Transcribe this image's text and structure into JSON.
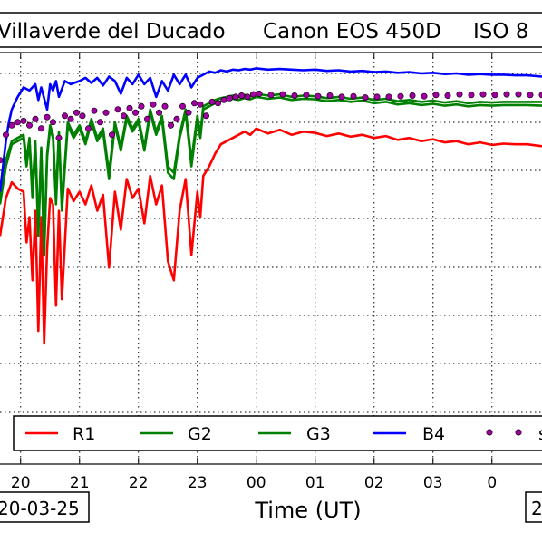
{
  "header": {
    "location": "Villaverde del Ducado",
    "camera": "Canon EOS 450D",
    "iso": "ISO 8"
  },
  "footer": {
    "start_date": "20-03-25",
    "end_date": "2"
  },
  "chart_data": {
    "type": "line",
    "title": "",
    "xlabel": "Time (UT)",
    "ylabel": "",
    "x_tick_labels": [
      "20",
      "21",
      "22",
      "23",
      "00",
      "01",
      "02",
      "03",
      "0"
    ],
    "x_range_hours": [
      19.65,
      28.85
    ],
    "y_range": [
      0,
      10.5
    ],
    "grid": true,
    "legend_position": "bottom",
    "colors": {
      "R1": "#ff0000",
      "G2": "#008000",
      "G3": "#008000",
      "B4": "#0000ff",
      "marker": "#a000a0"
    },
    "series": [
      {
        "name": "R1",
        "style": "line",
        "x": [
          19.65,
          19.75,
          19.85,
          19.95,
          20.05,
          20.1,
          20.15,
          20.2,
          20.25,
          20.3,
          20.35,
          20.4,
          20.45,
          20.5,
          20.55,
          20.6,
          20.65,
          20.7,
          20.8,
          20.9,
          21.0,
          21.1,
          21.2,
          21.3,
          21.4,
          21.5,
          21.6,
          21.7,
          21.8,
          21.9,
          22.0,
          22.1,
          22.2,
          22.3,
          22.4,
          22.5,
          22.6,
          22.7,
          22.8,
          22.9,
          23.0,
          23.05,
          23.1,
          23.2,
          23.3,
          23.4,
          23.5,
          23.6,
          23.7,
          23.8,
          23.9,
          24.0,
          24.2,
          24.4,
          24.6,
          24.8,
          25.0,
          25.2,
          25.4,
          25.6,
          25.8,
          26.0,
          26.2,
          26.4,
          26.6,
          26.8,
          27.0,
          27.2,
          27.4,
          27.6,
          27.8,
          28.0,
          28.2,
          28.4,
          28.6,
          28.85
        ],
        "y": [
          8.0,
          8.6,
          8.85,
          8.75,
          8.7,
          7.9,
          8.3,
          7.3,
          8.4,
          6.5,
          8.3,
          6.3,
          7.8,
          8.6,
          8.5,
          6.9,
          8.4,
          7.0,
          8.75,
          8.55,
          8.7,
          8.5,
          8.8,
          8.4,
          8.65,
          7.5,
          8.7,
          8.1,
          8.9,
          8.6,
          8.75,
          8.2,
          8.95,
          8.5,
          8.8,
          7.6,
          7.3,
          8.4,
          8.9,
          7.7,
          8.7,
          8.3,
          8.95,
          9.1,
          9.3,
          9.45,
          9.5,
          9.55,
          9.6,
          9.65,
          9.6,
          9.7,
          9.62,
          9.68,
          9.6,
          9.65,
          9.63,
          9.58,
          9.62,
          9.57,
          9.6,
          9.55,
          9.58,
          9.52,
          9.55,
          9.5,
          9.53,
          9.48,
          9.5,
          9.45,
          9.48,
          9.44,
          9.46,
          9.45,
          9.45,
          9.42
        ]
      },
      {
        "name": "G2",
        "style": "line",
        "x": [
          19.65,
          19.75,
          19.85,
          19.95,
          20.05,
          20.1,
          20.15,
          20.2,
          20.25,
          20.3,
          20.35,
          20.4,
          20.45,
          20.5,
          20.55,
          20.6,
          20.65,
          20.7,
          20.8,
          20.9,
          21.0,
          21.1,
          21.2,
          21.3,
          21.4,
          21.5,
          21.6,
          21.7,
          21.8,
          21.9,
          22.0,
          22.1,
          22.2,
          22.3,
          22.4,
          22.5,
          22.6,
          22.7,
          22.8,
          22.9,
          23.0,
          23.05,
          23.1,
          23.2,
          23.3,
          23.4,
          23.5,
          23.6,
          23.7,
          23.8,
          23.9,
          24.0,
          24.2,
          24.4,
          24.6,
          24.8,
          25.0,
          25.2,
          25.4,
          25.6,
          25.8,
          26.0,
          26.2,
          26.4,
          26.6,
          26.8,
          27.0,
          27.2,
          27.4,
          27.6,
          27.8,
          28.0,
          28.2,
          28.4,
          28.6,
          28.85
        ],
        "y": [
          8.6,
          9.2,
          9.5,
          9.55,
          9.6,
          9.2,
          9.55,
          8.7,
          9.5,
          8.1,
          9.4,
          7.8,
          9.3,
          9.75,
          9.6,
          8.6,
          9.65,
          8.5,
          9.8,
          9.6,
          9.75,
          9.5,
          9.85,
          9.55,
          9.7,
          9.0,
          9.8,
          9.4,
          9.9,
          9.7,
          9.85,
          9.4,
          10.0,
          9.65,
          9.9,
          9.1,
          9.0,
          9.6,
          10.0,
          9.2,
          9.9,
          9.6,
          10.05,
          10.1,
          10.15,
          10.18,
          10.2,
          10.22,
          10.2,
          10.23,
          10.21,
          10.25,
          10.22,
          10.24,
          10.2,
          10.22,
          10.21,
          10.18,
          10.2,
          10.17,
          10.19,
          10.15,
          10.17,
          10.13,
          10.15,
          10.12,
          10.14,
          10.11,
          10.13,
          10.1,
          10.12,
          10.11,
          10.12,
          10.12,
          10.12,
          10.12
        ]
      },
      {
        "name": "G3",
        "style": "line",
        "x": [
          19.65,
          19.75,
          19.85,
          19.95,
          20.05,
          20.1,
          20.15,
          20.2,
          20.25,
          20.3,
          20.35,
          20.4,
          20.45,
          20.5,
          20.55,
          20.6,
          20.65,
          20.7,
          20.8,
          20.9,
          21.0,
          21.1,
          21.2,
          21.3,
          21.4,
          21.5,
          21.6,
          21.7,
          21.8,
          21.9,
          22.0,
          22.1,
          22.2,
          22.3,
          22.4,
          22.5,
          22.6,
          22.7,
          22.8,
          22.9,
          23.0,
          23.05,
          23.1,
          23.2,
          23.3,
          23.4,
          23.5,
          23.6,
          23.7,
          23.8,
          23.9,
          24.0,
          24.2,
          24.4,
          24.6,
          24.8,
          25.0,
          25.2,
          25.4,
          25.6,
          25.8,
          26.0,
          26.2,
          26.4,
          26.6,
          26.8,
          27.0,
          27.2,
          27.4,
          27.6,
          27.8,
          28.0,
          28.2,
          28.4,
          28.6,
          28.85
        ],
        "y": [
          8.5,
          9.1,
          9.45,
          9.5,
          9.55,
          9.1,
          9.5,
          8.6,
          9.45,
          8.0,
          9.35,
          7.7,
          9.25,
          9.7,
          9.55,
          8.5,
          9.6,
          8.4,
          9.75,
          9.55,
          9.7,
          9.45,
          9.8,
          9.5,
          9.65,
          8.9,
          9.75,
          9.35,
          9.85,
          9.65,
          9.8,
          9.35,
          9.95,
          9.6,
          9.85,
          9.0,
          8.9,
          9.55,
          9.95,
          9.1,
          9.85,
          9.55,
          10.0,
          10.05,
          10.1,
          10.13,
          10.15,
          10.17,
          10.15,
          10.18,
          10.16,
          10.2,
          10.17,
          10.19,
          10.15,
          10.17,
          10.16,
          10.13,
          10.15,
          10.12,
          10.14,
          10.1,
          10.12,
          10.08,
          10.1,
          10.07,
          10.09,
          10.06,
          10.08,
          10.05,
          10.07,
          10.06,
          10.07,
          10.07,
          10.07,
          10.06
        ]
      },
      {
        "name": "B4",
        "style": "line",
        "x": [
          19.65,
          19.7,
          19.75,
          19.8,
          19.85,
          19.9,
          19.95,
          20.05,
          20.15,
          20.25,
          20.3,
          20.35,
          20.45,
          20.5,
          20.55,
          20.6,
          20.65,
          20.75,
          20.85,
          21.0,
          21.1,
          21.2,
          21.3,
          21.4,
          21.5,
          21.6,
          21.7,
          21.8,
          21.9,
          22.0,
          22.1,
          22.2,
          22.3,
          22.4,
          22.5,
          22.6,
          22.7,
          22.8,
          22.9,
          23.0,
          23.1,
          23.2,
          23.3,
          23.4,
          23.5,
          23.6,
          23.7,
          23.8,
          23.9,
          24.0,
          24.2,
          24.4,
          24.6,
          24.8,
          25.0,
          25.2,
          25.4,
          25.6,
          25.8,
          26.0,
          26.2,
          26.4,
          26.6,
          26.8,
          27.0,
          27.2,
          27.4,
          27.6,
          27.8,
          28.0,
          28.2,
          28.4,
          28.6,
          28.85
        ],
        "y": [
          8.7,
          9.1,
          9.5,
          9.8,
          10.0,
          10.1,
          10.2,
          10.35,
          10.3,
          10.4,
          10.15,
          10.35,
          10.0,
          10.4,
          10.3,
          10.45,
          10.2,
          10.45,
          10.4,
          10.45,
          10.5,
          10.42,
          10.5,
          10.38,
          10.52,
          10.45,
          10.25,
          10.5,
          10.4,
          10.55,
          10.4,
          10.5,
          10.2,
          10.45,
          10.3,
          10.55,
          10.4,
          10.55,
          10.35,
          10.5,
          10.55,
          10.6,
          10.58,
          10.62,
          10.6,
          10.63,
          10.62,
          10.64,
          10.63,
          10.65,
          10.63,
          10.64,
          10.63,
          10.62,
          10.63,
          10.61,
          10.62,
          10.6,
          10.61,
          10.59,
          10.6,
          10.58,
          10.59,
          10.57,
          10.58,
          10.56,
          10.57,
          10.55,
          10.56,
          10.55,
          10.55,
          10.54,
          10.54,
          10.52
        ]
      },
      {
        "name": "",
        "style": "markers",
        "x": [
          19.65,
          19.75,
          19.85,
          19.95,
          20.05,
          20.15,
          20.25,
          20.35,
          20.45,
          20.55,
          20.65,
          20.75,
          20.85,
          20.95,
          21.05,
          21.15,
          21.25,
          21.35,
          21.45,
          21.55,
          21.65,
          21.75,
          21.85,
          21.95,
          22.05,
          22.15,
          22.25,
          22.35,
          22.45,
          22.55,
          22.65,
          22.75,
          22.85,
          22.95,
          23.05,
          23.15,
          23.25,
          23.35,
          23.45,
          23.55,
          23.65,
          23.75,
          23.85,
          23.95,
          24.05,
          24.25,
          24.45,
          24.65,
          24.85,
          25.05,
          25.25,
          25.45,
          25.65,
          25.85,
          26.05,
          26.25,
          26.45,
          26.65,
          26.85,
          27.05,
          27.25,
          27.45,
          27.65,
          27.85,
          28.05,
          28.25,
          28.45,
          28.65,
          28.85
        ],
        "y": [
          9.2,
          9.6,
          9.75,
          9.8,
          9.82,
          9.75,
          9.85,
          9.7,
          9.88,
          9.8,
          9.55,
          9.9,
          9.85,
          9.95,
          9.9,
          9.7,
          9.98,
          9.8,
          9.95,
          9.6,
          10.0,
          9.9,
          10.02,
          9.95,
          10.05,
          9.85,
          10.08,
          9.95,
          10.05,
          9.75,
          9.85,
          10.05,
          9.95,
          10.1,
          10.08,
          9.9,
          10.12,
          10.1,
          10.15,
          10.18,
          10.2,
          10.22,
          10.2,
          10.24,
          10.25,
          10.23,
          10.24,
          10.22,
          10.23,
          10.21,
          10.22,
          10.2,
          10.21,
          10.19,
          10.2,
          10.2,
          10.21,
          10.22,
          10.21,
          10.23,
          10.22,
          10.24,
          10.23,
          10.24,
          10.23,
          10.24,
          10.24,
          10.23,
          10.23
        ]
      }
    ],
    "legend_labels": [
      "R1",
      "G2",
      "G3",
      "B4",
      "s"
    ]
  }
}
